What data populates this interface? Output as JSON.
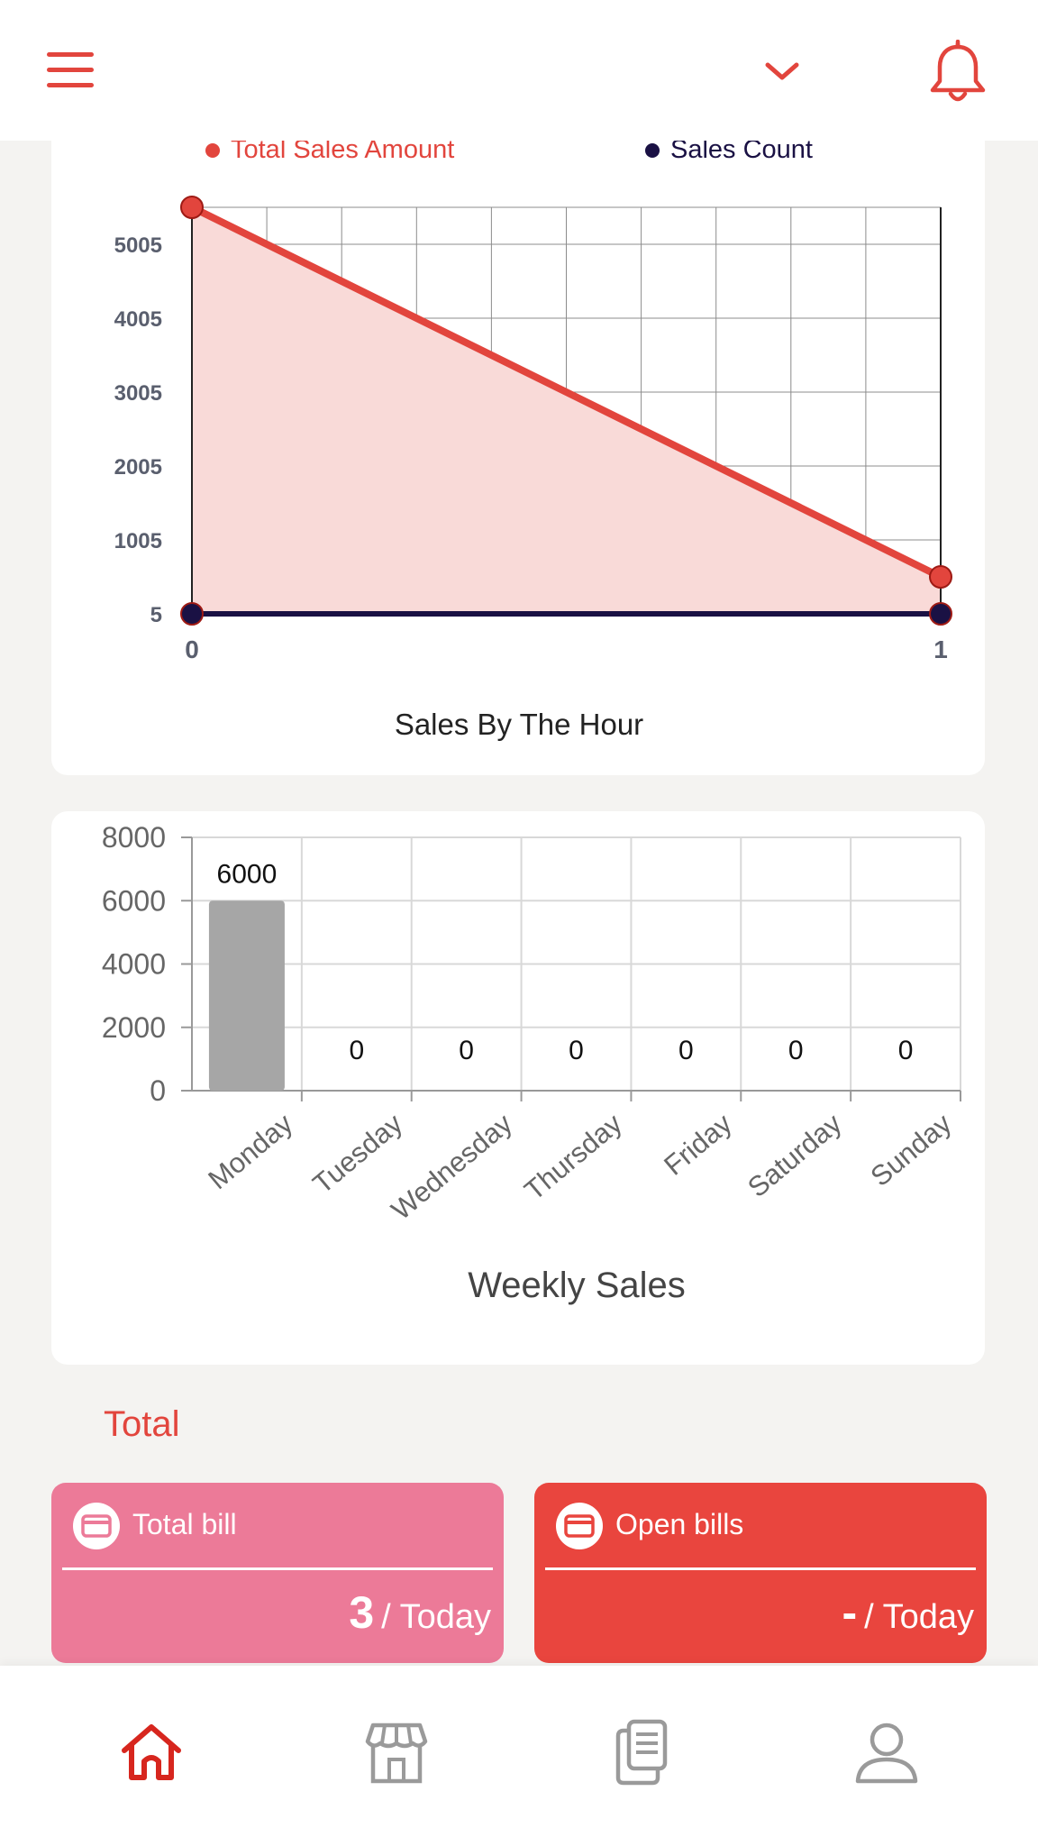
{
  "header": {
    "menu_icon": "hamburger-icon",
    "dropdown_icon": "chevron-down-icon",
    "notification_icon": "bell-icon"
  },
  "colors": {
    "accent_red": "#e2453d",
    "navy": "#1a1144",
    "pink_card": "#ec7a98",
    "red_card": "#e9453e",
    "bar_gray": "#a6a6a6"
  },
  "hour_chart": {
    "legend": [
      {
        "label": "Total Sales Amount",
        "color": "#e2453d"
      },
      {
        "label": "Sales Count",
        "color": "#1a1144"
      }
    ],
    "title": "Sales By The Hour"
  },
  "week_chart": {
    "title": "Weekly Sales"
  },
  "chart_data": [
    {
      "type": "area",
      "title": "Sales By The Hour",
      "x": [
        0,
        1
      ],
      "x_ticks": [
        "0",
        "1"
      ],
      "y_ticks": [
        "5",
        "1005",
        "2005",
        "3005",
        "4005",
        "5005"
      ],
      "ylim": [
        5,
        5505
      ],
      "grid": true,
      "legend_position": "top",
      "series": [
        {
          "name": "Total Sales Amount",
          "values": [
            5505,
            505
          ],
          "color": "#e2453d",
          "fill": "#f9dad8"
        },
        {
          "name": "Sales Count",
          "values": [
            5,
            5
          ],
          "color": "#1a1144"
        }
      ]
    },
    {
      "type": "bar",
      "title": "Weekly Sales",
      "categories": [
        "Monday",
        "Tuesday",
        "Wednesday",
        "Thursday",
        "Friday",
        "Saturday",
        "Sunday"
      ],
      "values": [
        6000,
        0,
        0,
        0,
        0,
        0,
        0
      ],
      "data_labels": [
        "6000",
        "0",
        "0",
        "0",
        "0",
        "0",
        "0"
      ],
      "y_ticks": [
        "0",
        "2000",
        "4000",
        "6000",
        "8000"
      ],
      "ylim": [
        0,
        8000
      ],
      "grid": true
    }
  ],
  "totals": {
    "section_title": "Total",
    "cards": [
      {
        "label": "Total bill",
        "value": "3",
        "suffix": "/ Today",
        "icon": "credit-card-icon"
      },
      {
        "label": "Open bills",
        "value": "-",
        "suffix": "/ Today",
        "icon": "credit-card-icon"
      }
    ]
  },
  "bottom_nav": {
    "items": [
      {
        "name": "home",
        "icon": "home-icon",
        "active": true
      },
      {
        "name": "store",
        "icon": "store-icon",
        "active": false
      },
      {
        "name": "documents",
        "icon": "documents-icon",
        "active": false
      },
      {
        "name": "profile",
        "icon": "user-icon",
        "active": false
      }
    ]
  }
}
